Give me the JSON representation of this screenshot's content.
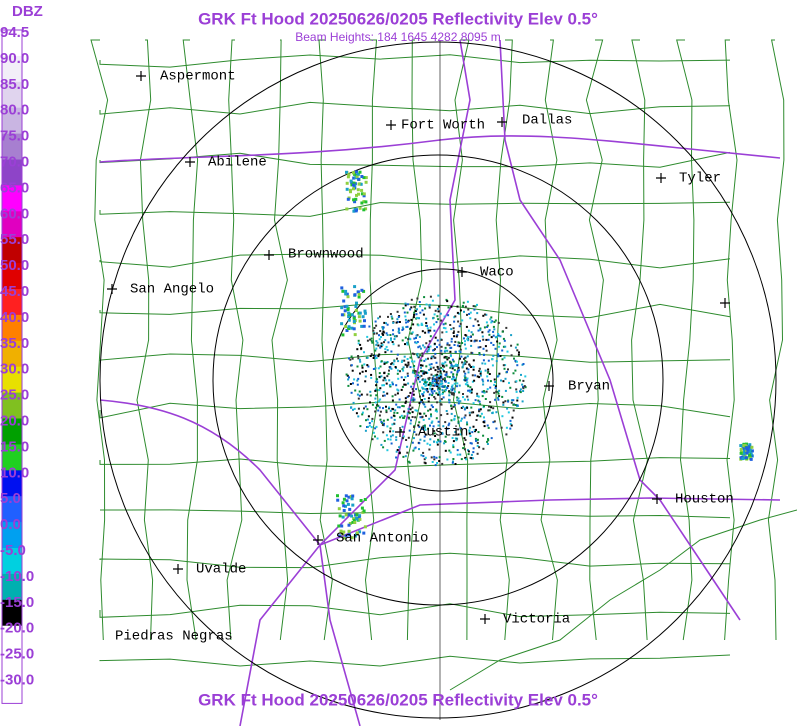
{
  "header": {
    "title": "GRK Ft Hood 20250626/0205 Reflectivity Elev 0.5°",
    "subtitle": "Beam Heights: 184 1645 4282 8095 m",
    "footer": "GRK Ft Hood 20250626/0205 Reflectivity Elev 0.5°"
  },
  "legend": {
    "unit": "DBZ",
    "labels": [
      "94.5",
      "90.0",
      "85.0",
      "80.0",
      "75.0",
      "70.0",
      "65.0",
      "60.0",
      "55.0",
      "50.0",
      "45.0",
      "40.0",
      "35.0",
      "30.0",
      "25.0",
      "20.0",
      "15.0",
      "10.0",
      "5.0",
      "0.0",
      "-5.0",
      "-10.0",
      "-15.0",
      "-20.0",
      "-25.0",
      "-30.0"
    ]
  },
  "cities": [
    {
      "name": "Aspermont"
    },
    {
      "name": "Abilene"
    },
    {
      "name": "Fort Worth"
    },
    {
      "name": "Dallas"
    },
    {
      "name": "Tyler"
    },
    {
      "name": "Brownwood"
    },
    {
      "name": "San Angelo"
    },
    {
      "name": "Waco"
    },
    {
      "name": "Bryan"
    },
    {
      "name": "Austin"
    },
    {
      "name": "San Antonio"
    },
    {
      "name": "Uvalde"
    },
    {
      "name": "Victoria"
    },
    {
      "name": "Houston"
    },
    {
      "name": "Piedras Negras"
    }
  ]
}
